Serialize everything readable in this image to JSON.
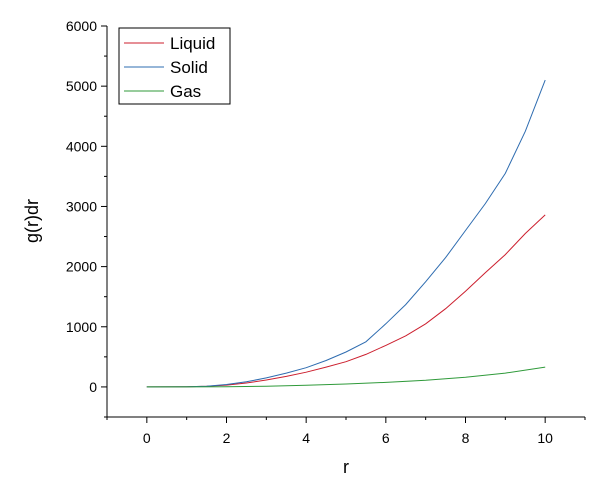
{
  "chart_data": {
    "type": "line",
    "title": "",
    "xlabel": "r",
    "ylabel": "g(r)dr",
    "xlim": [
      -1,
      11
    ],
    "ylim": [
      -500,
      6000
    ],
    "xticks": [
      0,
      2,
      4,
      6,
      8,
      10
    ],
    "yticks": [
      0,
      1000,
      2000,
      3000,
      4000,
      5000,
      6000
    ],
    "grid": false,
    "legend_position": "top-left",
    "series": [
      {
        "name": "Liquid",
        "color": "#cc1f2e",
        "x": [
          0,
          1,
          1.5,
          2,
          2.5,
          3,
          3.5,
          4,
          4.5,
          5,
          5.5,
          6,
          6.5,
          7,
          7.5,
          8,
          8.5,
          9,
          9.5,
          10
        ],
        "y": [
          0,
          3,
          10,
          30,
          65,
          115,
          175,
          245,
          330,
          420,
          540,
          690,
          850,
          1050,
          1300,
          1590,
          1900,
          2200,
          2550,
          2860
        ]
      },
      {
        "name": "Solid",
        "color": "#2e6cb0",
        "x": [
          0,
          1,
          1.5,
          2,
          2.5,
          3,
          3.5,
          4,
          4.5,
          5,
          5.5,
          6,
          6.5,
          7,
          7.5,
          8,
          8.5,
          9,
          9.5,
          10
        ],
        "y": [
          0,
          4,
          12,
          40,
          85,
          150,
          230,
          320,
          440,
          580,
          750,
          1050,
          1370,
          1750,
          2150,
          2600,
          3050,
          3550,
          4250,
          5100
        ]
      },
      {
        "name": "Gas",
        "color": "#2f9a3a",
        "x": [
          0,
          1,
          2,
          3,
          4,
          5,
          6,
          7,
          8,
          9,
          10
        ],
        "y": [
          0,
          1,
          4,
          12,
          28,
          48,
          75,
          110,
          160,
          230,
          330
        ]
      }
    ]
  }
}
